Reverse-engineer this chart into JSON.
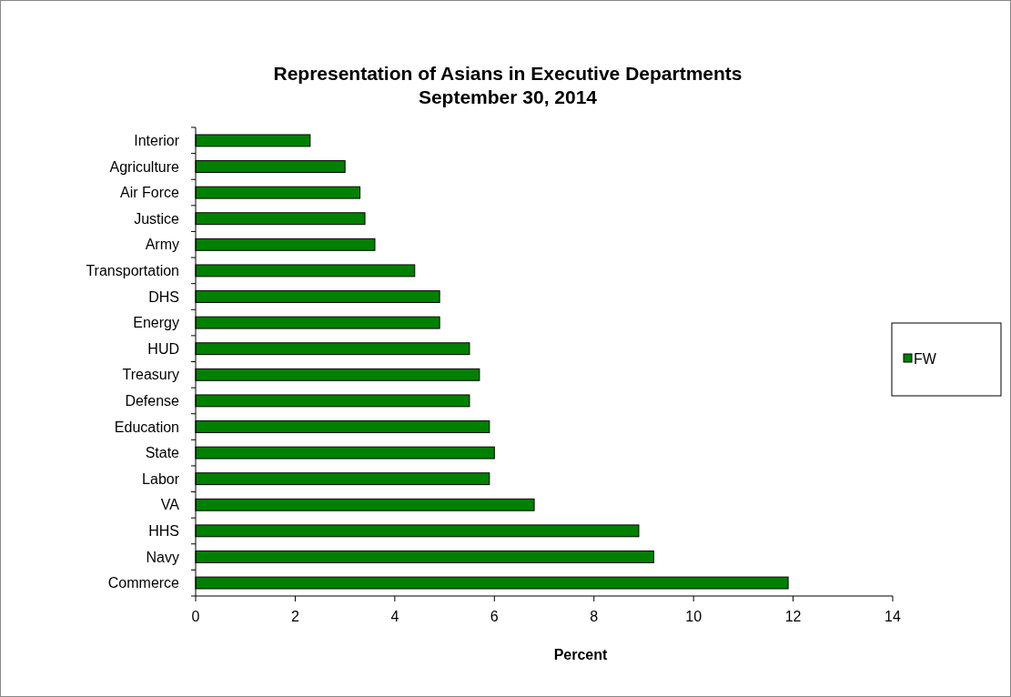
{
  "chart_data": {
    "type": "bar",
    "orientation": "horizontal",
    "title": "Representation of Asians in Executive Departments\nSeptember 30, 2014",
    "xlabel": "Percent",
    "categories": [
      "Interior",
      "Agriculture",
      "Air Force",
      "Justice",
      "Army",
      "Transportation",
      "DHS",
      "Energy",
      "HUD",
      "Treasury",
      "Defense",
      "Education",
      "State",
      "Labor",
      "VA",
      "HHS",
      "Navy",
      "Commerce"
    ],
    "series": [
      {
        "name": "FW",
        "color": "#008000",
        "values": [
          2.3,
          3.0,
          3.3,
          3.4,
          3.6,
          4.4,
          4.9,
          4.9,
          5.5,
          5.7,
          5.5,
          5.9,
          6.0,
          5.9,
          6.8,
          8.9,
          9.2,
          11.9
        ]
      }
    ],
    "xlim": [
      0,
      14
    ],
    "xticks": [
      0,
      2,
      4,
      6,
      8,
      10,
      12,
      14
    ],
    "legend": "right",
    "grid": false
  }
}
